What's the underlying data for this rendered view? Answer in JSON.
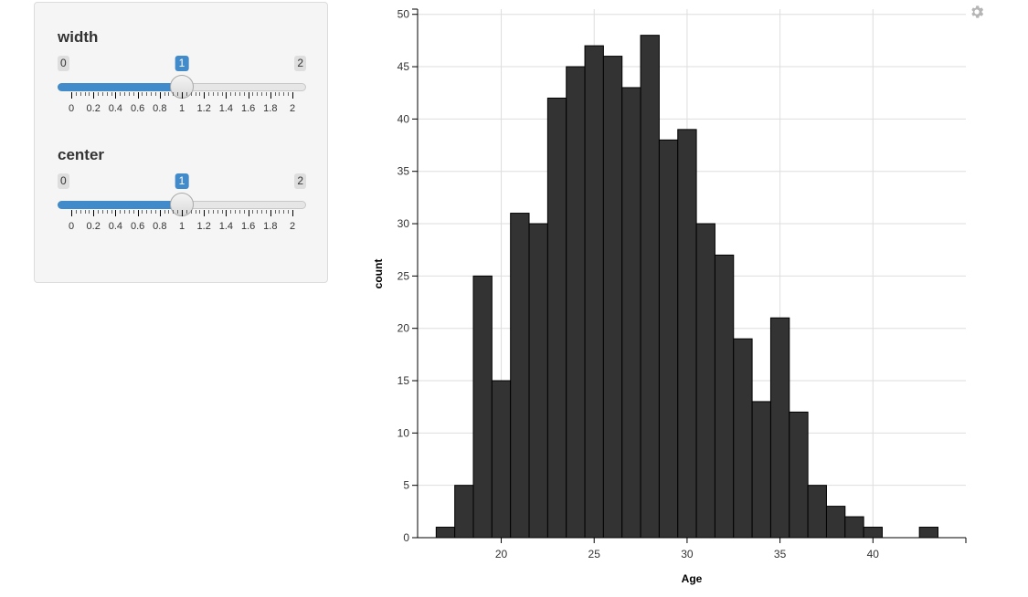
{
  "sliders": [
    {
      "label": "width",
      "min_label": "0",
      "max_label": "2",
      "value_label": "1",
      "value": 1,
      "ticks": [
        "0",
        "0.2",
        "0.4",
        "0.6",
        "0.8",
        "1",
        "1.2",
        "1.4",
        "1.6",
        "1.8",
        "2"
      ]
    },
    {
      "label": "center",
      "min_label": "0",
      "max_label": "2",
      "value_label": "1",
      "value": 1,
      "ticks": [
        "0",
        "0.2",
        "0.4",
        "0.6",
        "0.8",
        "1",
        "1.2",
        "1.4",
        "1.6",
        "1.8",
        "2"
      ]
    }
  ],
  "colors": {
    "accent": "#428bca",
    "bar_fill": "#333333",
    "grid": "#dedede"
  },
  "chart_data": {
    "type": "bar",
    "xlabel": "Age",
    "ylabel": "count",
    "xlim": [
      15.5,
      45
    ],
    "ylim": [
      0,
      50.5
    ],
    "x_ticks": [
      20,
      25,
      30,
      35,
      40
    ],
    "y_ticks": [
      0,
      5,
      10,
      15,
      20,
      25,
      30,
      35,
      40,
      45,
      50
    ],
    "bin_width": 1,
    "bins": [
      {
        "x0": 16.5,
        "count": 1
      },
      {
        "x0": 17.5,
        "count": 5
      },
      {
        "x0": 18.5,
        "count": 25
      },
      {
        "x0": 19.5,
        "count": 15
      },
      {
        "x0": 20.5,
        "count": 31
      },
      {
        "x0": 21.5,
        "count": 30
      },
      {
        "x0": 22.5,
        "count": 42
      },
      {
        "x0": 23.5,
        "count": 45
      },
      {
        "x0": 24.5,
        "count": 47
      },
      {
        "x0": 25.5,
        "count": 46
      },
      {
        "x0": 26.5,
        "count": 43
      },
      {
        "x0": 27.5,
        "count": 48
      },
      {
        "x0": 28.5,
        "count": 38
      },
      {
        "x0": 29.5,
        "count": 39
      },
      {
        "x0": 30.5,
        "count": 30
      },
      {
        "x0": 31.5,
        "count": 27
      },
      {
        "x0": 32.5,
        "count": 19
      },
      {
        "x0": 33.5,
        "count": 13
      },
      {
        "x0": 34.5,
        "count": 21
      },
      {
        "x0": 35.5,
        "count": 12
      },
      {
        "x0": 36.5,
        "count": 5
      },
      {
        "x0": 37.5,
        "count": 3
      },
      {
        "x0": 38.5,
        "count": 2
      },
      {
        "x0": 39.5,
        "count": 1
      },
      {
        "x0": 42.5,
        "count": 1
      }
    ],
    "grid": true
  },
  "icons": {
    "settings": "gear-icon"
  }
}
